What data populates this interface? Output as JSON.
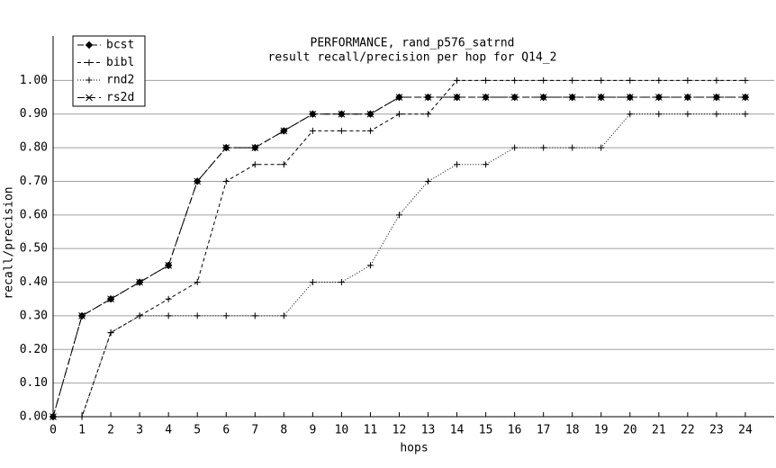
{
  "chart_data": {
    "type": "line",
    "title": [
      "PERFORMANCE, rand_p576_satrnd",
      "result recall/precision per hop for Q14_2"
    ],
    "x_label": "hops",
    "y_label": "recall/precision",
    "x": [
      0,
      1,
      2,
      3,
      4,
      5,
      6,
      7,
      8,
      9,
      10,
      11,
      12,
      13,
      14,
      15,
      16,
      17,
      18,
      19,
      20,
      21,
      22,
      23,
      24
    ],
    "series": [
      {
        "name": "bcst",
        "color": "#000000",
        "dash": "7 3 2 3",
        "marker": "diamond",
        "values": [
          0,
          0.3,
          0.35,
          0.4,
          0.45,
          0.7,
          0.8,
          0.8,
          0.85,
          0.9,
          0.9,
          0.9,
          0.95,
          0.95,
          0.95,
          0.95,
          0.95,
          0.95,
          0.95,
          0.95,
          0.95,
          0.95,
          0.95,
          0.95,
          0.95
        ]
      },
      {
        "name": "bibl",
        "color": "#000000",
        "dash": "4 3",
        "marker": "plus",
        "values": [
          0,
          0,
          0.25,
          0.3,
          0.35,
          0.4,
          0.7,
          0.75,
          0.75,
          0.85,
          0.85,
          0.85,
          0.9,
          0.9,
          1.0,
          1.0,
          1.0,
          1.0,
          1.0,
          1.0,
          1.0,
          1.0,
          1.0,
          1.0,
          1.0
        ]
      },
      {
        "name": "rnd2",
        "color": "#000000",
        "dash": "1 2",
        "marker": "plus",
        "values": [
          0,
          0,
          0.25,
          0.3,
          0.3,
          0.3,
          0.3,
          0.3,
          0.3,
          0.4,
          0.4,
          0.45,
          0.6,
          0.7,
          0.75,
          0.75,
          0.8,
          0.8,
          0.8,
          0.8,
          0.9,
          0.9,
          0.9,
          0.9,
          0.9
        ]
      },
      {
        "name": "rs2d",
        "color": "#000000",
        "dash": "8 4",
        "marker": "star",
        "values": [
          0,
          0.3,
          0.35,
          0.4,
          0.45,
          0.7,
          0.8,
          0.8,
          0.85,
          0.9,
          0.9,
          0.9,
          0.95,
          0.95,
          0.95,
          0.95,
          0.95,
          0.95,
          0.95,
          0.95,
          0.95,
          0.95,
          0.95,
          0.95,
          0.95
        ]
      }
    ],
    "xlim": [
      0,
      25
    ],
    "ylim": [
      0,
      1.1
    ],
    "xticks": [
      0,
      1,
      2,
      3,
      4,
      5,
      6,
      7,
      8,
      9,
      10,
      11,
      12,
      13,
      14,
      15,
      16,
      17,
      18,
      19,
      20,
      21,
      22,
      23,
      24
    ],
    "yticks": [
      {
        "value": 0,
        "label": "0.00"
      },
      {
        "value": 0.1,
        "label": "0.10"
      },
      {
        "value": 0.2,
        "label": "0.20"
      },
      {
        "value": 0.3,
        "label": "0.30"
      },
      {
        "value": 0.4,
        "label": "0.40"
      },
      {
        "value": 0.5,
        "label": "0.50"
      },
      {
        "value": 0.6,
        "label": "0.60"
      },
      {
        "value": 0.7,
        "label": "0.70"
      },
      {
        "value": 0.8,
        "label": "0.80"
      },
      {
        "value": 0.9,
        "label": "0.90"
      },
      {
        "value": 1,
        "label": "1.00"
      }
    ],
    "grid": true,
    "legend_position": "upper-left"
  }
}
